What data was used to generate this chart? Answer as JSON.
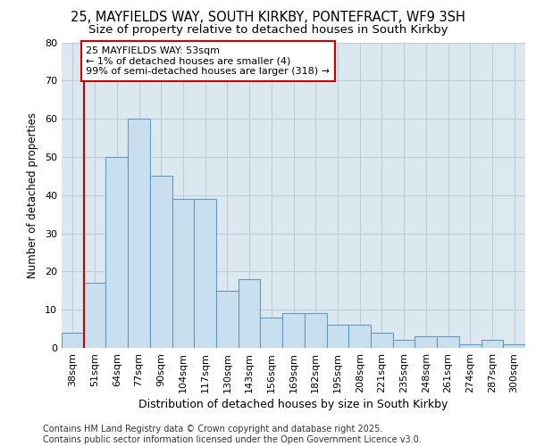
{
  "title_line1": "25, MAYFIELDS WAY, SOUTH KIRKBY, PONTEFRACT, WF9 3SH",
  "title_line2": "Size of property relative to detached houses in South Kirkby",
  "xlabel": "Distribution of detached houses by size in South Kirkby",
  "ylabel": "Number of detached properties",
  "categories": [
    "38sqm",
    "51sqm",
    "64sqm",
    "77sqm",
    "90sqm",
    "104sqm",
    "117sqm",
    "130sqm",
    "143sqm",
    "156sqm",
    "169sqm",
    "182sqm",
    "195sqm",
    "208sqm",
    "221sqm",
    "235sqm",
    "248sqm",
    "261sqm",
    "274sqm",
    "287sqm",
    "300sqm"
  ],
  "values": [
    4,
    17,
    50,
    60,
    45,
    39,
    39,
    15,
    18,
    8,
    9,
    9,
    6,
    6,
    4,
    2,
    3,
    3,
    1,
    2,
    1
  ],
  "bar_color": "#c8dff0",
  "bar_edge_color": "#6699bb",
  "red_line_color": "#cc0000",
  "annotation_text": "25 MAYFIELDS WAY: 53sqm\n← 1% of detached houses are smaller (4)\n99% of semi-detached houses are larger (318) →",
  "annotation_box_color": "#ffffff",
  "annotation_box_edge_color": "#cc0000",
  "ylim": [
    0,
    80
  ],
  "yticks": [
    0,
    10,
    20,
    30,
    40,
    50,
    60,
    70,
    80
  ],
  "grid_color": "#c0cdd8",
  "bg_color": "#dce8f0",
  "footer_text": "Contains HM Land Registry data © Crown copyright and database right 2025.\nContains public sector information licensed under the Open Government Licence v3.0.",
  "title_fontsize": 10.5,
  "subtitle_fontsize": 9.5,
  "xlabel_fontsize": 9,
  "ylabel_fontsize": 8.5,
  "tick_fontsize": 8,
  "annotation_fontsize": 8,
  "footer_fontsize": 7
}
